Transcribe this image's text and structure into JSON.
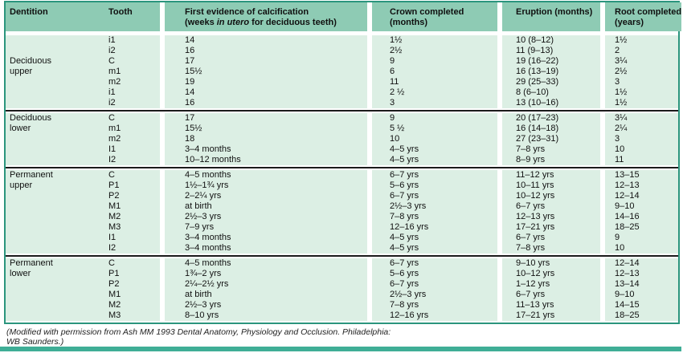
{
  "colors": {
    "header_bg": "#8ecbb4",
    "body_bg": "#dcefe4",
    "border": "#2b957d",
    "divider": "#1b1b1b",
    "accent_bar": "#3fae96"
  },
  "table": {
    "headers": {
      "dentition": "Dentition",
      "tooth": "Tooth",
      "calcification_line1": "First evidence of calcification",
      "calcification_line2_pre": "(weeks ",
      "calcification_line2_italic": "in utero",
      "calcification_line2_post": " for deciduous teeth)",
      "crown_line1": "Crown completed",
      "crown_line2": "(months)",
      "eruption": "Eruption (months)",
      "root_line1": "Root completed",
      "root_line2": "(years)"
    },
    "sections": [
      {
        "rows": [
          {
            "dentition": "",
            "tooth": "i1",
            "calcification": "14",
            "crown": "1½",
            "eruption": "10 (8–12)",
            "root": "1½"
          },
          {
            "dentition": "",
            "tooth": "i2",
            "calcification": "16",
            "crown": "2½",
            "eruption": "11 (9–13)",
            "root": "2"
          },
          {
            "dentition": "Deciduous",
            "tooth": "C",
            "calcification": "17",
            "crown": "9",
            "eruption": "19 (16–22)",
            "root": "3¼"
          },
          {
            "dentition": "upper",
            "tooth": "m1",
            "calcification": "15½",
            "crown": "6",
            "eruption": "16 (13–19)",
            "root": "2½"
          },
          {
            "dentition": "",
            "tooth": "m2",
            "calcification": "19",
            "crown": "11",
            "eruption": "29 (25–33)",
            "root": "3"
          },
          {
            "dentition": "",
            "tooth": "i1",
            "calcification": "14",
            "crown": "2 ½",
            "eruption": "8 (6–10)",
            "root": "1½"
          },
          {
            "dentition": "",
            "tooth": "i2",
            "calcification": "16",
            "crown": "3",
            "eruption": "13 (10–16)",
            "root": "1½"
          }
        ]
      },
      {
        "rows": [
          {
            "dentition": "Deciduous",
            "tooth": "C",
            "calcification": "17",
            "crown": "9",
            "eruption": "20 (17–23)",
            "root": "3¼"
          },
          {
            "dentition": "lower",
            "tooth": "m1",
            "calcification": "15½",
            "crown": "5 ½",
            "eruption": "16 (14–18)",
            "root": "2¼"
          },
          {
            "dentition": "",
            "tooth": "m2",
            "calcification": "18",
            "crown": "10",
            "eruption": "27 (23–31)",
            "root": "3"
          },
          {
            "dentition": "",
            "tooth": "I1",
            "calcification": "3–4 months",
            "crown": "4–5 yrs",
            "eruption": "7–8 yrs",
            "root": "10"
          },
          {
            "dentition": "",
            "tooth": "I2",
            "calcification": "10–12 months",
            "crown": "4–5 yrs",
            "eruption": "8–9 yrs",
            "root": "11"
          }
        ]
      },
      {
        "rows": [
          {
            "dentition": "Permanent",
            "tooth": "C",
            "calcification": "4–5 months",
            "crown": "6–7 yrs",
            "eruption": "11–12 yrs",
            "root": "13–15"
          },
          {
            "dentition": "upper",
            "tooth": "P1",
            "calcification": "1½–1¾ yrs",
            "crown": "5–6 yrs",
            "eruption": "10–11 yrs",
            "root": "12–13"
          },
          {
            "dentition": "",
            "tooth": "P2",
            "calcification": "2–2¼ yrs",
            "crown": "6–7 yrs",
            "eruption": "10–12 yrs",
            "root": "12–14"
          },
          {
            "dentition": "",
            "tooth": "M1",
            "calcification": "at birth",
            "crown": "2½–3 yrs",
            "eruption": "6–7 yrs",
            "root": "9–10"
          },
          {
            "dentition": "",
            "tooth": "M2",
            "calcification": "2½–3 yrs",
            "crown": "7–8 yrs",
            "eruption": "12–13 yrs",
            "root": "14–16"
          },
          {
            "dentition": "",
            "tooth": "M3",
            "calcification": "7–9 yrs",
            "crown": "12–16 yrs",
            "eruption": "17–21 yrs",
            "root": "18–25"
          },
          {
            "dentition": "",
            "tooth": "I1",
            "calcification": "3–4 months",
            "crown": "4–5 yrs",
            "eruption": "6–7 yrs",
            "root": "9"
          },
          {
            "dentition": "",
            "tooth": "I2",
            "calcification": "3–4 months",
            "crown": "4–5 yrs",
            "eruption": "7–8 yrs",
            "root": "10"
          }
        ]
      },
      {
        "rows": [
          {
            "dentition": "Permanent",
            "tooth": "C",
            "calcification": "4–5 months",
            "crown": "6–7 yrs",
            "eruption": "9–10 yrs",
            "root": "12–14"
          },
          {
            "dentition": "lower",
            "tooth": "P1",
            "calcification": "1¾–2 yrs",
            "crown": "5–6 yrs",
            "eruption": "10–12 yrs",
            "root": "12–13"
          },
          {
            "dentition": "",
            "tooth": "P2",
            "calcification": "2¼–2½ yrs",
            "crown": "6–7 yrs",
            "eruption": "1–12 yrs",
            "root": "13–14"
          },
          {
            "dentition": "",
            "tooth": "M1",
            "calcification": "at birth",
            "crown": "2½–3 yrs",
            "eruption": "6–7 yrs",
            "root": "9–10"
          },
          {
            "dentition": "",
            "tooth": "M2",
            "calcification": "2½–3 yrs",
            "crown": "7–8 yrs",
            "eruption": "11–13 yrs",
            "root": "14–15"
          },
          {
            "dentition": "",
            "tooth": "M3",
            "calcification": "8–10 yrs",
            "crown": "12–16 yrs",
            "eruption": "17–21 yrs",
            "root": "18–25"
          }
        ]
      }
    ]
  },
  "footer": {
    "line1": "(Modified with permission from Ash MM 1993 Dental Anatomy, Physiology and Occlusion. Philadelphia:",
    "line2": "WB Saunders.)"
  }
}
